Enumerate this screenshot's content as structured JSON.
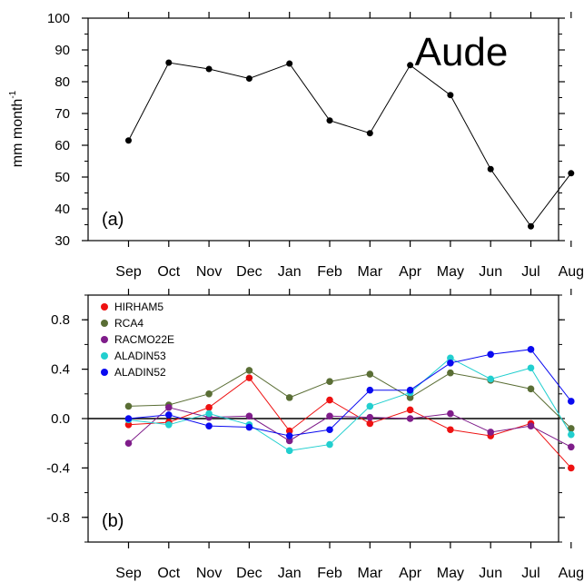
{
  "chart_data": [
    {
      "type": "line",
      "title": "Aude",
      "panel_label": "(a)",
      "ylabel_main": "mm month",
      "ylabel_sup": "-1",
      "xlabel": "",
      "categories": [
        "Sep",
        "Oct",
        "Nov",
        "Dec",
        "Jan",
        "Feb",
        "Mar",
        "Apr",
        "May",
        "Jun",
        "Jul",
        "Aug"
      ],
      "ylim": [
        30,
        100
      ],
      "yticks": [
        30,
        40,
        50,
        60,
        70,
        80,
        90,
        100
      ],
      "ytick_labels": [
        "30",
        "40",
        "50",
        "60",
        "70",
        "80",
        "90",
        "100"
      ],
      "grid": false,
      "series": [
        {
          "color": "#000000",
          "values": [
            61.5,
            86,
            84,
            81,
            85.7,
            67.8,
            63.8,
            85.2,
            75.8,
            52.5,
            34.5,
            51.2
          ]
        }
      ]
    },
    {
      "type": "line",
      "panel_label": "(b)",
      "xlabel": "",
      "ylabel": "",
      "categories": [
        "Sep",
        "Oct",
        "Nov",
        "Dec",
        "Jan",
        "Feb",
        "Mar",
        "Apr",
        "May",
        "Jun",
        "Jul",
        "Aug"
      ],
      "ylim": [
        -1.0,
        1.0
      ],
      "yticks": [
        -0.8,
        -0.4,
        0.0,
        0.4,
        0.8
      ],
      "ytick_labels": [
        "-0.8",
        "-0.4",
        "0.0",
        "0.4",
        "0.8"
      ],
      "zero_line": true,
      "legend_position": "top-left",
      "grid": false,
      "series": [
        {
          "name": "HIRHAM5",
          "color": "#ee1111",
          "values": [
            -0.05,
            -0.03,
            0.09,
            0.33,
            -0.1,
            0.15,
            -0.04,
            0.07,
            -0.09,
            -0.14,
            -0.04,
            -0.4
          ]
        },
        {
          "name": "RCA4",
          "color": "#5a6e35",
          "values": [
            0.1,
            0.11,
            0.2,
            0.39,
            0.17,
            0.3,
            0.36,
            0.17,
            0.37,
            0.31,
            0.24,
            -0.08
          ]
        },
        {
          "name": "RACMO22E",
          "color": "#7f1d8a",
          "values": [
            -0.2,
            0.09,
            0.01,
            0.02,
            -0.18,
            0.02,
            0.01,
            0.0,
            0.04,
            -0.11,
            -0.06,
            -0.23
          ]
        },
        {
          "name": "ALADIN53",
          "color": "#22cfcf",
          "values": [
            -0.01,
            -0.05,
            0.04,
            -0.05,
            -0.26,
            -0.21,
            0.1,
            0.21,
            0.49,
            0.32,
            0.41,
            -0.13
          ]
        },
        {
          "name": "ALADIN52",
          "color": "#0a0af0",
          "values": [
            0.0,
            0.03,
            -0.06,
            -0.07,
            -0.14,
            -0.09,
            0.23,
            0.23,
            0.45,
            0.52,
            0.56,
            0.14
          ]
        }
      ]
    }
  ]
}
